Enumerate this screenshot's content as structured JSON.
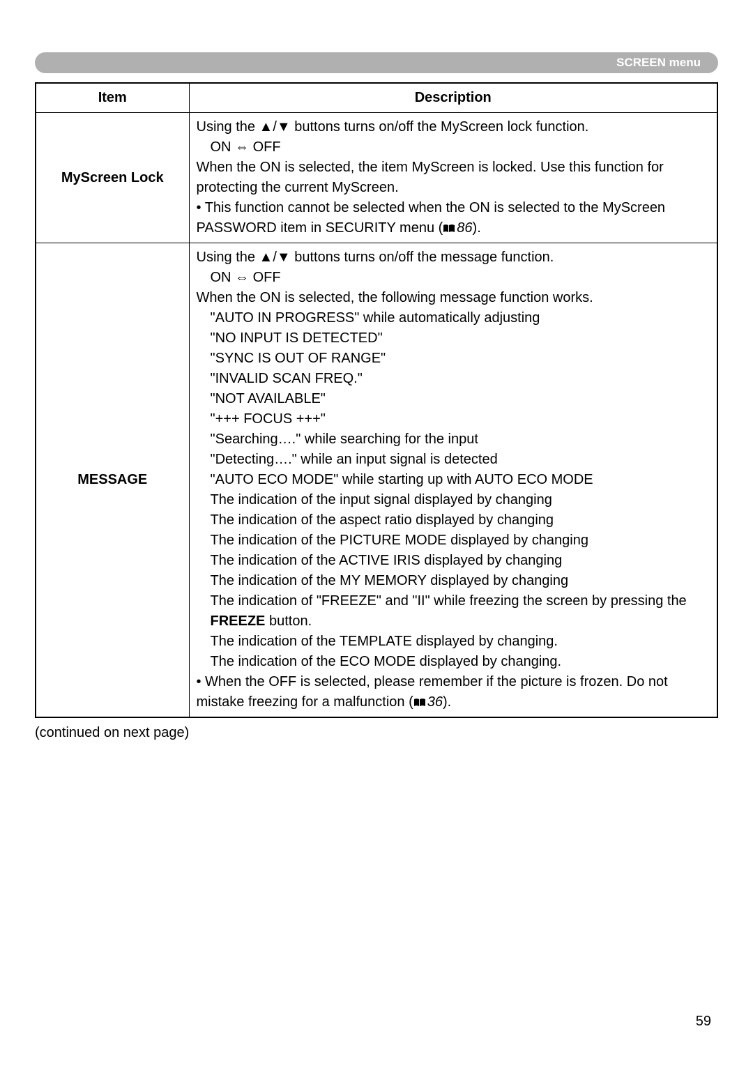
{
  "header": {
    "title": "SCREEN menu"
  },
  "table": {
    "headers": {
      "item": "Item",
      "description": "Description"
    },
    "rows": [
      {
        "item": "MyScreen Lock",
        "desc": {
          "l1": "Using the ▲/▼ buttons turns on/off the MyScreen lock function.",
          "l2": "ON ⇔ OFF",
          "l3a": "When the ON is selected, the item MyScreen is locked. Use this function for protecting the current MyScreen.",
          "l4a": "• This function cannot be selected when the ON is selected to the MyScreen PASSWORD item in SECURITY menu (",
          "l4ref": "86",
          "l4b": ")."
        }
      },
      {
        "item": "MESSAGE",
        "desc": {
          "l1": "Using the ▲/▼ buttons turns on/off the message function.",
          "l2": "ON ⇔ OFF",
          "l3": "When the ON is selected, the following message function works.",
          "l4": "\"AUTO IN PROGRESS\" while automatically adjusting",
          "l5": "\"NO INPUT IS DETECTED\"",
          "l6": "\"SYNC IS OUT OF RANGE\"",
          "l7": "\"INVALID SCAN FREQ.\"",
          "l8": "\"NOT AVAILABLE\"",
          "l9": "\"+++ FOCUS +++\"",
          "l10": "\"Searching….\" while searching for the input",
          "l11": "\"Detecting….\" while an input signal is detected",
          "l12": "\"AUTO ECO MODE\" while starting up with AUTO ECO MODE",
          "l13": "The indication of the input signal displayed by changing",
          "l14": "The indication of the aspect ratio displayed by changing",
          "l15": "The indication of the PICTURE MODE displayed by changing",
          "l16": "The indication of the ACTIVE IRIS displayed by changing",
          "l17": "The indication of the MY MEMORY displayed by changing",
          "l18a": "The indication of \"FREEZE\" and \"II\" while freezing the screen by pressing the ",
          "l18b": "FREEZE",
          "l18c": " button.",
          "l19": "The indication of the TEMPLATE displayed by changing.",
          "l20": "The indication of the ECO MODE displayed by changing.",
          "l21a": "• When the OFF is selected, please remember if the picture is frozen. Do not mistake freezing for a malfunction (",
          "l21ref": "36",
          "l21b": ")."
        }
      }
    ]
  },
  "continued": "(continued on next page)",
  "pageNum": "59",
  "colors": {
    "headerBg": "#b0b0b0",
    "headerText": "#ffffff",
    "border": "#000000",
    "text": "#000000",
    "background": "#ffffff"
  }
}
